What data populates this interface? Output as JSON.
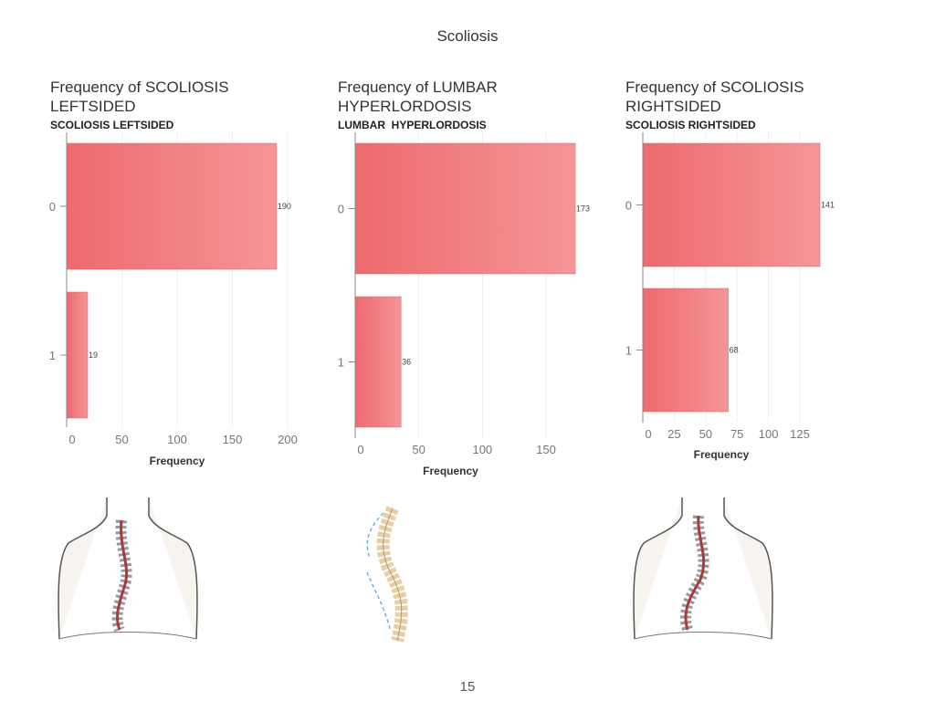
{
  "page": {
    "title": "Scoliosis",
    "page_number": "15"
  },
  "colors": {
    "bar_start": "#ee6a6e",
    "bar_end": "#f59597",
    "grid": "#d6d6d6",
    "spine_red": "#a83a40",
    "spine_bone": "#e8cfa4",
    "curve_blue": "#4aa3d8"
  },
  "illustrations": [
    "back-left-scoliosis-icon",
    "lumbar-spine-icon",
    "back-right-scoliosis-icon"
  ],
  "chart_data": [
    {
      "type": "bar",
      "orientation": "horizontal",
      "title": "Frequency of SCOLIOSIS LEFTSIDED",
      "subtitle": "SCOLIOSIS LEFTSIDED",
      "categories": [
        "0",
        "1"
      ],
      "values": [
        190,
        19
      ],
      "data_labels": [
        "190",
        "19"
      ],
      "xlabel": "Frequency",
      "ylabel": "",
      "xlim": [
        0,
        200
      ],
      "xticks": [
        "0",
        "50",
        "100",
        "150",
        "200"
      ],
      "grid": true
    },
    {
      "type": "bar",
      "orientation": "horizontal",
      "title": "Frequency of LUMBAR HYPERLORDOSIS",
      "subtitle": "LUMBAR  HYPERLORDOSIS",
      "categories": [
        "0",
        "1"
      ],
      "values": [
        173,
        36
      ],
      "data_labels": [
        "173",
        "36"
      ],
      "xlabel": "Frequency",
      "ylabel": "",
      "xlim": [
        0,
        173
      ],
      "xticks": [
        "0",
        "50",
        "100",
        "150"
      ],
      "grid": true
    },
    {
      "type": "bar",
      "orientation": "horizontal",
      "title": "Frequency of SCOLIOSIS RIGHTSIDED",
      "subtitle": "SCOLIOSIS RIGHTSIDED",
      "categories": [
        "0",
        "1"
      ],
      "values": [
        141,
        68
      ],
      "data_labels": [
        "141",
        "68"
      ],
      "xlabel": "Frequency",
      "ylabel": "",
      "xlim": [
        0,
        141
      ],
      "xticks": [
        "0",
        "25",
        "50",
        "75",
        "100",
        "125"
      ],
      "grid": true
    }
  ]
}
